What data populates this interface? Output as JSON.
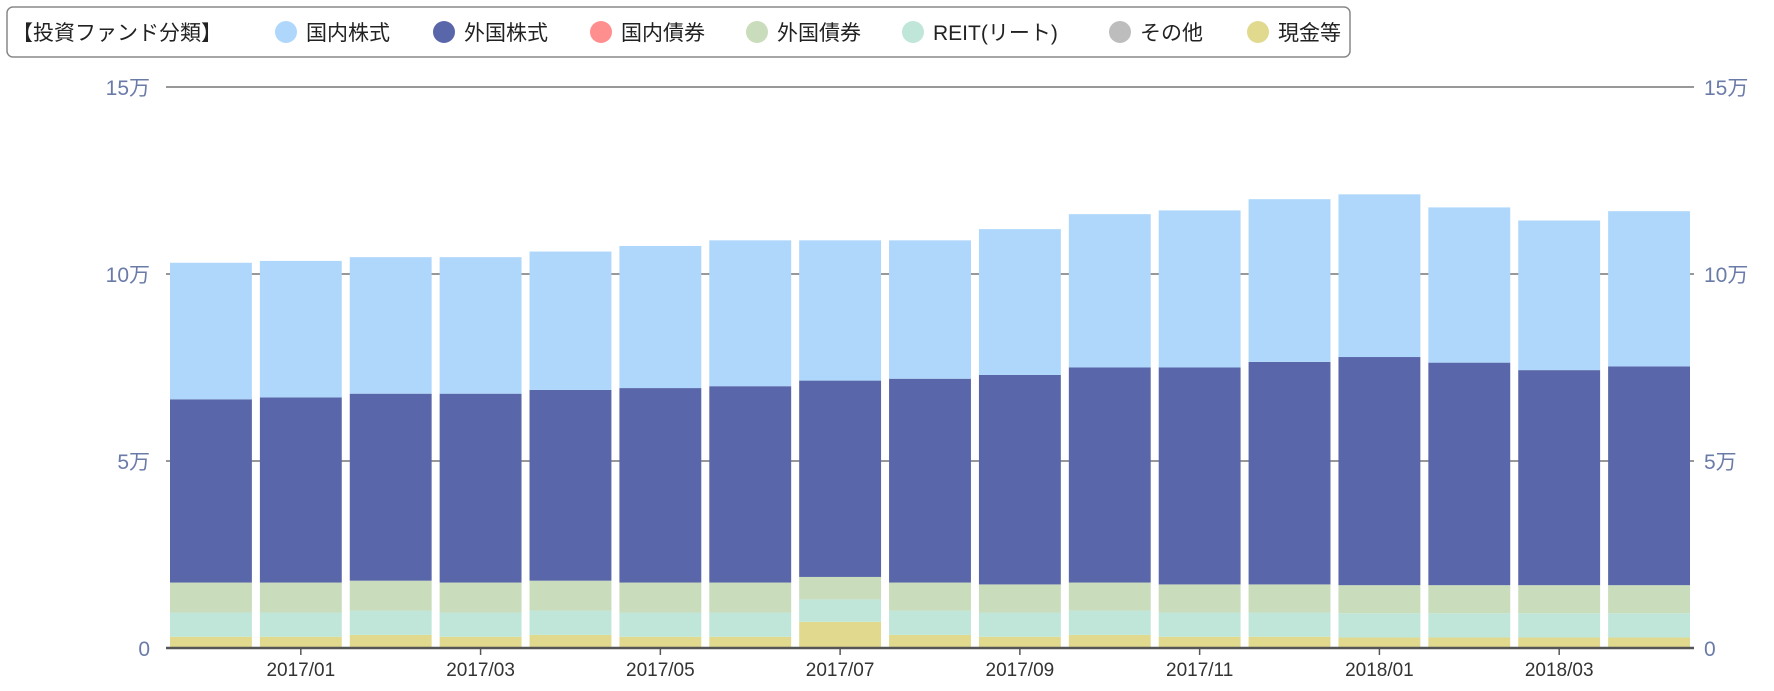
{
  "legend": {
    "title": "【投資ファンド分類】",
    "items": [
      "国内株式",
      "外国株式",
      "国内債券",
      "外国債券",
      "REIT(リート)",
      "その他",
      "現金等"
    ]
  },
  "axis": {
    "left_ticks": [
      "0",
      "5万",
      "10万",
      "15万"
    ],
    "right_ticks": [
      "0",
      "5万",
      "10万",
      "15万"
    ]
  },
  "chart_data": {
    "type": "bar",
    "stacked": true,
    "categories": [
      "2016/12",
      "2017/01",
      "2017/02",
      "2017/03",
      "2017/04",
      "2017/05",
      "2017/06",
      "2017/07",
      "2017/08",
      "2017/09",
      "2017/10",
      "2017/11",
      "2017/12",
      "2018/01",
      "2018/02",
      "2018/03",
      "2018/04"
    ],
    "x_tick_labels": [
      "2017/01",
      "2017/03",
      "2017/05",
      "2017/07",
      "2017/09",
      "2017/11",
      "2018/01",
      "2018/03"
    ],
    "ylim": [
      0,
      150000
    ],
    "y_ticks": [
      0,
      50000,
      100000,
      150000
    ],
    "grid": true,
    "legend_position": "top-left",
    "series": [
      {
        "name": "現金等",
        "color": "#e1d98e",
        "values": [
          3000,
          3000,
          3500,
          3000,
          3500,
          3000,
          3000,
          7000,
          3500,
          3000,
          3500,
          3000,
          3000,
          2800,
          2800,
          2800,
          2800
        ]
      },
      {
        "name": "その他",
        "color": "#bdbdbd",
        "values": [
          0,
          0,
          0,
          0,
          0,
          0,
          0,
          0,
          0,
          0,
          0,
          0,
          0,
          0,
          0,
          0,
          0
        ]
      },
      {
        "name": "REIT(リート)",
        "color": "#bfe6d9",
        "values": [
          6500,
          6500,
          6500,
          6500,
          6500,
          6500,
          6500,
          6000,
          6500,
          6500,
          6500,
          6500,
          6500,
          6500,
          6500,
          6500,
          6500
        ]
      },
      {
        "name": "外国債券",
        "color": "#c9dcbb",
        "values": [
          8000,
          8000,
          8000,
          8000,
          8000,
          8000,
          8000,
          6000,
          7500,
          7500,
          7500,
          7500,
          7500,
          7500,
          7500,
          7500,
          7500
        ]
      },
      {
        "name": "国内債券",
        "color": "#ff8f8f",
        "values": [
          0,
          0,
          0,
          0,
          0,
          0,
          0,
          0,
          0,
          0,
          0,
          0,
          0,
          0,
          0,
          0,
          0
        ]
      },
      {
        "name": "外国株式",
        "color": "#5966a9",
        "values": [
          49000,
          49500,
          50000,
          50500,
          51000,
          52000,
          52500,
          52500,
          54500,
          56000,
          57500,
          58000,
          59500,
          61000,
          59500,
          57500,
          58500
        ]
      },
      {
        "name": "国内株式",
        "color": "#aed7fb",
        "values": [
          36500,
          36500,
          36500,
          36500,
          37000,
          38000,
          39000,
          37500,
          37000,
          39000,
          41000,
          42000,
          43500,
          43500,
          41500,
          40000,
          41500
        ]
      }
    ]
  }
}
